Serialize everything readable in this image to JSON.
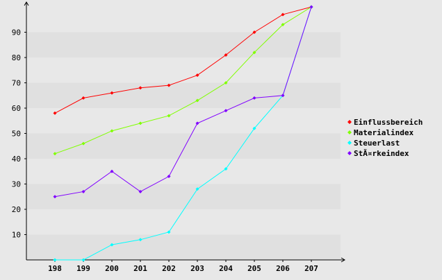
{
  "chart_data": {
    "type": "line",
    "categories": [
      "198",
      "199",
      "200",
      "201",
      "202",
      "203",
      "204",
      "205",
      "206",
      "207"
    ],
    "ylim": [
      0,
      100
    ],
    "yticks": [
      10,
      20,
      30,
      40,
      50,
      60,
      70,
      80,
      90
    ],
    "grid": "horizontal alternating bands",
    "legend_position": "right",
    "title": "",
    "xlabel": "",
    "ylabel": "",
    "series": [
      {
        "name": "Einflussbereich",
        "color": "#ff0000",
        "values": [
          58,
          64,
          66,
          68,
          69,
          73,
          81,
          90,
          97,
          100
        ]
      },
      {
        "name": "Materialindex",
        "color": "#80ff00",
        "values": [
          42,
          46,
          51,
          54,
          57,
          63,
          70,
          82,
          93,
          100
        ]
      },
      {
        "name": "Steuerlast",
        "color": "#00ffff",
        "values": [
          0,
          0,
          6,
          8,
          11,
          28,
          36,
          52,
          65,
          100
        ]
      },
      {
        "name": "StÃ¤rkeindex",
        "color": "#8000ff",
        "values": [
          25,
          27,
          35,
          27,
          33,
          54,
          59,
          64,
          65,
          100
        ]
      }
    ]
  }
}
